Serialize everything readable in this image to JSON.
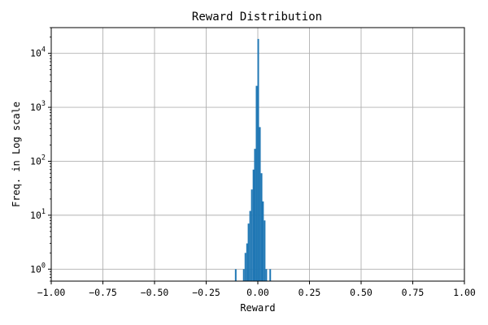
{
  "chart_data": {
    "type": "bar",
    "title": "Reward Distribution",
    "xlabel": "Reward",
    "ylabel": "Freq. in Log scale",
    "xlim": [
      -1.0,
      1.0
    ],
    "ylim": [
      0.6,
      30000
    ],
    "yscale": "log",
    "grid": true,
    "bar_color": "#1f77b4",
    "xticks": [
      -1.0,
      -0.75,
      -0.5,
      -0.25,
      0.0,
      0.25,
      0.5,
      0.75,
      1.0
    ],
    "xtick_labels": [
      "−1.00",
      "−0.75",
      "−0.50",
      "−0.25",
      "0.00",
      "0.25",
      "0.50",
      "0.75",
      "1.00"
    ],
    "yticks": [
      1,
      10,
      100,
      1000,
      10000
    ],
    "ytick_labels": [
      {
        "base": "10",
        "exp": "0"
      },
      {
        "base": "10",
        "exp": "1"
      },
      {
        "base": "10",
        "exp": "2"
      },
      {
        "base": "10",
        "exp": "3"
      },
      {
        "base": "10",
        "exp": "4"
      }
    ],
    "bin_width": 0.0078,
    "bins": [
      {
        "x": -0.107,
        "count": 1
      },
      {
        "x": -0.068,
        "count": 1
      },
      {
        "x": -0.06,
        "count": 2
      },
      {
        "x": -0.052,
        "count": 3
      },
      {
        "x": -0.045,
        "count": 7
      },
      {
        "x": -0.037,
        "count": 12
      },
      {
        "x": -0.029,
        "count": 30
      },
      {
        "x": -0.021,
        "count": 70
      },
      {
        "x": -0.014,
        "count": 170
      },
      {
        "x": -0.006,
        "count": 2500
      },
      {
        "x": 0.002,
        "count": 18500
      },
      {
        "x": 0.01,
        "count": 430
      },
      {
        "x": 0.018,
        "count": 60
      },
      {
        "x": 0.025,
        "count": 18
      },
      {
        "x": 0.033,
        "count": 8
      },
      {
        "x": 0.041,
        "count": 1
      },
      {
        "x": 0.06,
        "count": 1
      }
    ]
  }
}
